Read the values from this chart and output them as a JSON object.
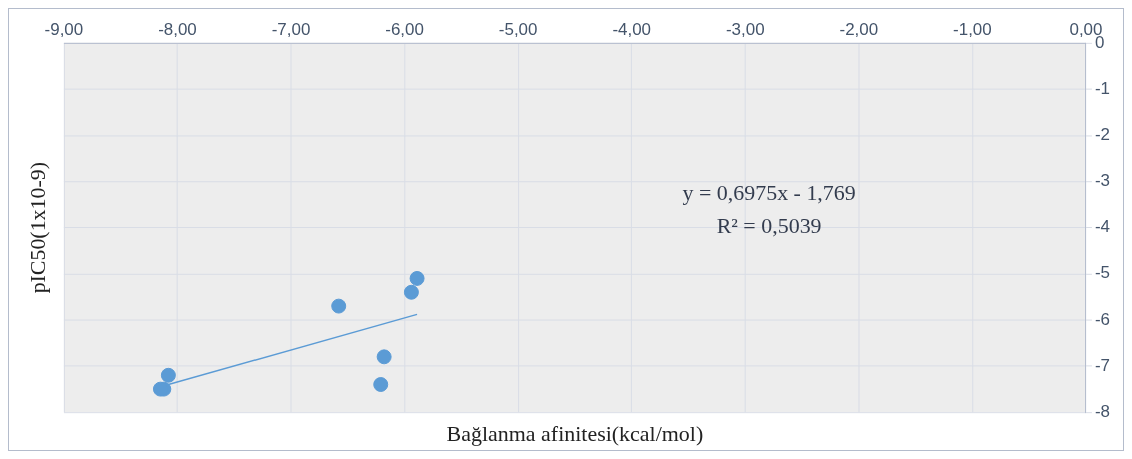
{
  "chart_data": {
    "type": "scatter",
    "xlabel": "Bağlanma afinitesi(kcal/mol)",
    "ylabel": "pIC50(1x10-9)",
    "series": [
      {
        "marker": "circle",
        "color": "#5b9bd5",
        "x": [
          -5.89,
          -5.94,
          -6.58,
          -6.18,
          -6.21,
          -8.08,
          -8.12,
          -8.15
        ],
        "values": [
          -5.1,
          -5.4,
          -5.7,
          -6.8,
          -7.4,
          -7.2,
          -7.5,
          -7.5
        ]
      },
      {
        "type": "line",
        "marker": "none",
        "color": "#5b9bd5",
        "x": [
          -8.15,
          -5.89
        ],
        "values": [
          -7.45,
          -5.88
        ]
      }
    ],
    "xlim": [
      -9,
      0
    ],
    "ylim": [
      -8,
      0
    ],
    "xticks": [
      {
        "value": -9,
        "label": "-9,00"
      },
      {
        "value": -8,
        "label": "-8,00"
      },
      {
        "value": -7,
        "label": "-7,00"
      },
      {
        "value": -6,
        "label": "-6,00"
      },
      {
        "value": -5,
        "label": "-5,00"
      },
      {
        "value": -4,
        "label": "-4,00"
      },
      {
        "value": -3,
        "label": "-3,00"
      },
      {
        "value": -2,
        "label": "-2,00"
      },
      {
        "value": -1,
        "label": "-1,00"
      },
      {
        "value": 0,
        "label": "0,00"
      }
    ],
    "yticks": [
      0,
      -1,
      -2,
      -3,
      -4,
      -5,
      -6,
      -7,
      -8
    ],
    "annotations": [
      "y = 0,6975x - 1,769",
      "R² = 0,5039"
    ],
    "grid": true,
    "legend": false
  }
}
